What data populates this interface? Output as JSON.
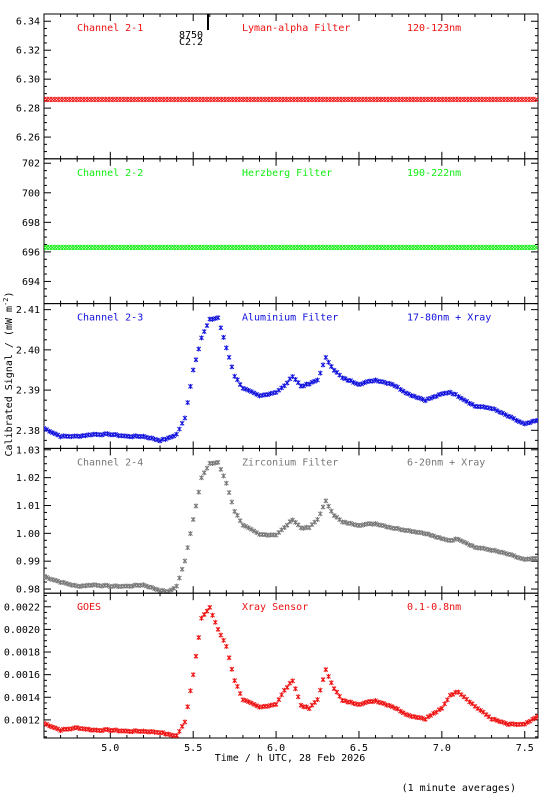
{
  "chart_data": [
    {
      "type": "scatter",
      "labels": [
        "Channel 2-1",
        "Lyman-alpha Filter",
        "120-123nm"
      ],
      "color": "#ee1111",
      "ylim": [
        6.245,
        6.345
      ],
      "yticks": [
        6.26,
        6.28,
        6.3,
        6.32,
        6.34
      ],
      "ytick_labels": [
        "6.26",
        "6.28",
        "6.30",
        "6.32",
        "6.34"
      ],
      "series": [
        {
          "values": [
            6.286
          ]
        }
      ]
    },
    {
      "type": "scatter",
      "labels": [
        "Channel 2-2",
        "Herzberg Filter",
        "190-222nm"
      ],
      "color": "#11ee11",
      "ylim": [
        692.5,
        702.3
      ],
      "yticks": [
        694,
        696,
        698,
        700,
        702
      ],
      "ytick_labels": [
        "694",
        "696",
        "698",
        "700",
        "702"
      ],
      "series": [
        {
          "values": [
            696.3
          ]
        }
      ]
    },
    {
      "type": "scatter",
      "labels": [
        "Channel 2-3",
        "Aluminium Filter",
        "17-80nm + Xray"
      ],
      "color": "#1111dd",
      "ylim": [
        2.3755,
        2.4115
      ],
      "yticks": [
        2.38,
        2.39,
        2.4,
        2.41
      ],
      "ytick_labels": [
        "2.38",
        "2.39",
        "2.40",
        "2.41"
      ],
      "series": [
        {
          "x": [
            4.6,
            4.7,
            4.8,
            4.9,
            5.0,
            5.1,
            5.2,
            5.3,
            5.35,
            5.4,
            5.45,
            5.5,
            5.55,
            5.6,
            5.65,
            5.7,
            5.75,
            5.8,
            5.9,
            6.0,
            6.05,
            6.1,
            6.15,
            6.2,
            6.25,
            6.3,
            6.35,
            6.4,
            6.5,
            6.6,
            6.7,
            6.8,
            6.9,
            7.0,
            7.05,
            7.1,
            7.2,
            7.3,
            7.4,
            7.5,
            7.58
          ],
          "values": [
            2.3805,
            2.3785,
            2.3785,
            2.379,
            2.379,
            2.3785,
            2.3785,
            2.3775,
            2.378,
            2.379,
            2.383,
            2.395,
            2.403,
            2.4075,
            2.408,
            2.4005,
            2.3935,
            2.3905,
            2.3885,
            2.3895,
            2.391,
            2.3935,
            2.391,
            2.3915,
            2.3925,
            2.398,
            2.395,
            2.393,
            2.3915,
            2.3925,
            2.3915,
            2.389,
            2.3875,
            2.389,
            2.3895,
            2.3885,
            2.386,
            2.3855,
            2.3835,
            2.3815,
            2.3825
          ]
        }
      ]
    },
    {
      "type": "scatter",
      "labels": [
        "Channel 2-4",
        "Zirconium Filter",
        "6-20nm + Xray"
      ],
      "color": "#777777",
      "ylim": [
        0.9785,
        1.0305
      ],
      "yticks": [
        0.98,
        0.99,
        1.0,
        1.01,
        1.02,
        1.03
      ],
      "ytick_labels": [
        "0.98",
        "0.99",
        "1.00",
        "1.01",
        "1.02",
        "1.03"
      ],
      "series": [
        {
          "x": [
            4.6,
            4.7,
            4.8,
            4.9,
            5.0,
            5.1,
            5.2,
            5.3,
            5.35,
            5.4,
            5.45,
            5.5,
            5.55,
            5.6,
            5.65,
            5.7,
            5.75,
            5.8,
            5.9,
            6.0,
            6.05,
            6.1,
            6.15,
            6.2,
            6.25,
            6.3,
            6.35,
            6.4,
            6.5,
            6.6,
            6.7,
            6.8,
            6.9,
            7.0,
            7.05,
            7.1,
            7.2,
            7.3,
            7.4,
            7.5,
            7.58
          ],
          "values": [
            0.9845,
            0.9825,
            0.981,
            0.9815,
            0.981,
            0.981,
            0.9815,
            0.9795,
            0.979,
            0.981,
            0.99,
            1.005,
            1.02,
            1.025,
            1.0255,
            1.018,
            1.008,
            1.003,
            0.9995,
            0.9995,
            1.002,
            1.005,
            1.002,
            1.002,
            1.005,
            1.0115,
            1.0065,
            1.004,
            1.003,
            1.0035,
            1.002,
            1.001,
            1.0,
            0.998,
            0.9975,
            0.998,
            0.995,
            0.994,
            0.9925,
            0.9905,
            0.991
          ]
        }
      ]
    },
    {
      "type": "scatter",
      "labels": [
        "GOES",
        "Xray Sensor",
        "0.1-0.8nm"
      ],
      "color": "#ee1111",
      "ylim": [
        0.00104,
        0.00232
      ],
      "yticks": [
        0.0012,
        0.0014,
        0.0016,
        0.0018,
        0.002,
        0.0022
      ],
      "ytick_labels": [
        "0.0012",
        "0.0014",
        "0.0016",
        "0.0018",
        "0.0020",
        "0.0022"
      ],
      "xlim": [
        4.6,
        7.58
      ],
      "xticks": [
        5.0,
        5.5,
        6.0,
        6.5,
        7.0,
        7.5
      ],
      "xtick_labels": [
        "5.0",
        "5.5",
        "6.0",
        "6.5",
        "7.0",
        "7.5"
      ],
      "xlabel": "Time / h UTC, 28 Feb 2026",
      "series": [
        {
          "x": [
            4.6,
            4.7,
            4.8,
            4.9,
            5.0,
            5.1,
            5.2,
            5.3,
            5.35,
            5.4,
            5.45,
            5.5,
            5.55,
            5.6,
            5.65,
            5.7,
            5.75,
            5.8,
            5.9,
            6.0,
            6.05,
            6.1,
            6.15,
            6.2,
            6.25,
            6.3,
            6.35,
            6.4,
            6.5,
            6.6,
            6.7,
            6.8,
            6.9,
            7.0,
            7.05,
            7.1,
            7.2,
            7.3,
            7.4,
            7.5,
            7.58
          ],
          "values": [
            0.00117,
            0.00111,
            0.00113,
            0.00111,
            0.00111,
            0.0011,
            0.0011,
            0.00109,
            0.00107,
            0.00106,
            0.00118,
            0.0016,
            0.0021,
            0.00219,
            0.002,
            0.00185,
            0.00155,
            0.00138,
            0.00131,
            0.00134,
            0.00146,
            0.00155,
            0.00133,
            0.0013,
            0.00138,
            0.00164,
            0.00148,
            0.00137,
            0.00134,
            0.00137,
            0.00132,
            0.00124,
            0.00121,
            0.0013,
            0.00142,
            0.00145,
            0.00132,
            0.00121,
            0.00116,
            0.00116,
            0.00123
          ]
        }
      ]
    }
  ],
  "ylabel": "Calibrated Signal / (mW m",
  "ylabel_sup": "-2",
  "ylabel_close": ")",
  "marker": "8750 C2.2",
  "footnote": "(1 minute averages)"
}
